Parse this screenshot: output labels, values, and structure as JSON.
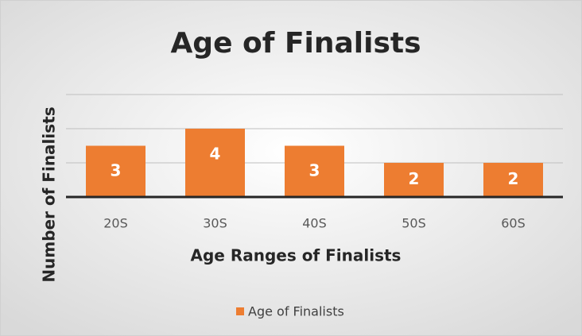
{
  "chart_data": {
    "type": "bar",
    "title": "Age of Finalists",
    "x_label": "Age Ranges of Finalists",
    "y_label": "Number of Finalists",
    "categories": [
      "20S",
      "30S",
      "40S",
      "50S",
      "60S"
    ],
    "series": [
      {
        "name": "Age of Finalists",
        "color": "#ed7d31",
        "values": [
          3,
          4,
          3,
          2,
          2
        ]
      }
    ],
    "ylim": [
      0,
      6
    ],
    "yticks": [
      0,
      2,
      4,
      6
    ],
    "grid": true,
    "legend": "bottom"
  }
}
